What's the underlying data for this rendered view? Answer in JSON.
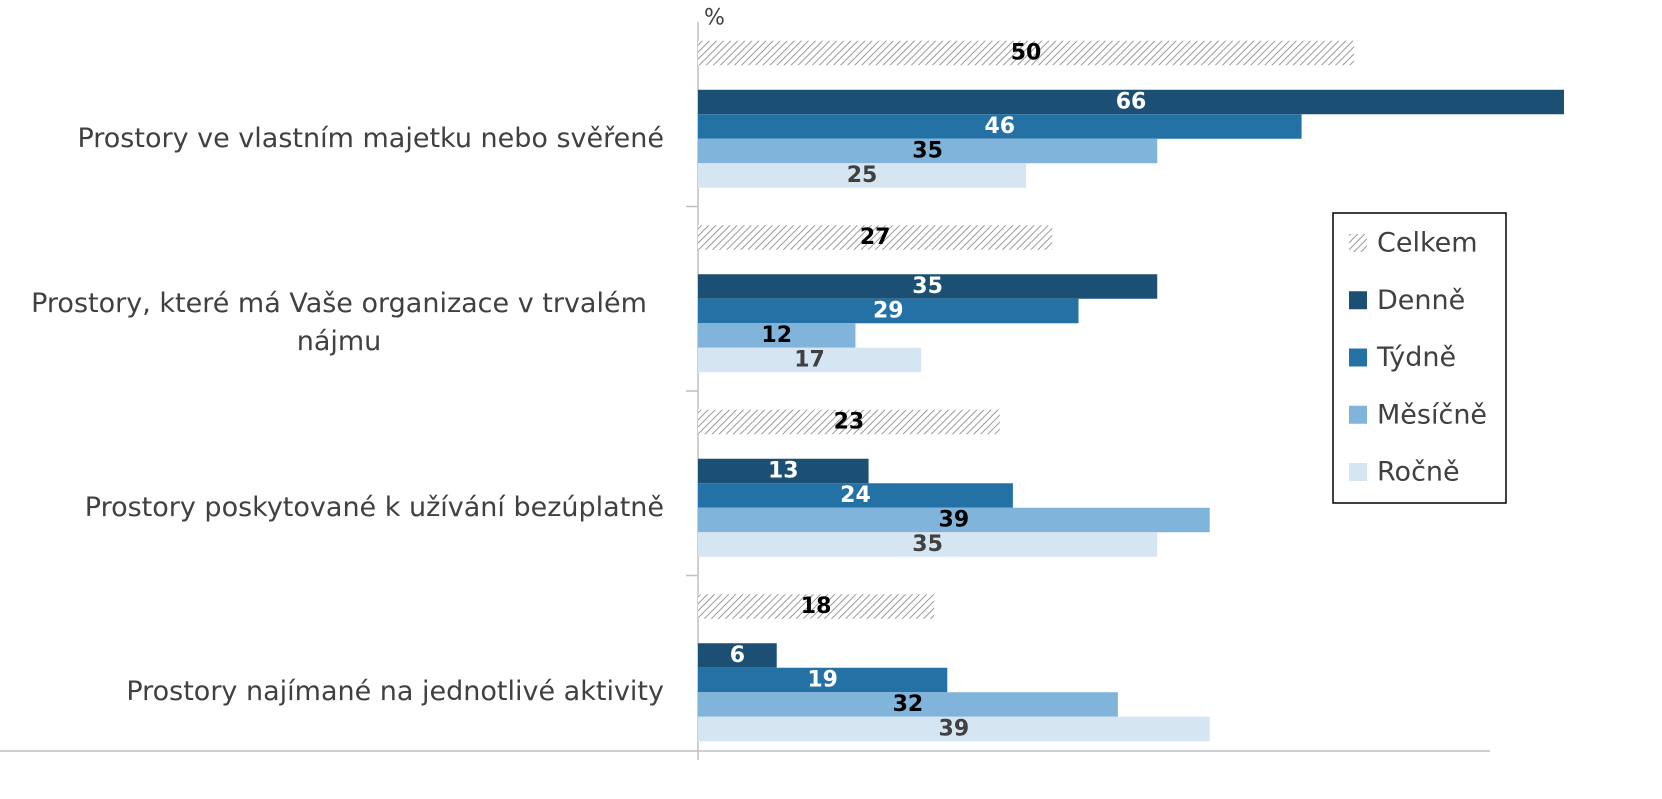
{
  "chart_data": {
    "type": "hbar",
    "unit": "%",
    "categories": [
      "Prostory ve vlastním majetku nebo svěřené",
      "Prostory, které má Vaše organizace v trvalém nájmu",
      "Prostory poskytované k užívání bezúplatně",
      "Prostory najímané na jednotlivé aktivity"
    ],
    "series": [
      {
        "name": "Celkem",
        "color": "#9a9a9a",
        "pattern": "hatch",
        "label_color": "#000000",
        "values": [
          50,
          27,
          23,
          18
        ]
      },
      {
        "name": "Denně",
        "color": "#1c4f74",
        "label_color": "#ffffff",
        "values": [
          66,
          35,
          13,
          6
        ]
      },
      {
        "name": "Týdně",
        "color": "#2471a6",
        "label_color": "#ffffff",
        "values": [
          46,
          29,
          24,
          19
        ]
      },
      {
        "name": "Měsíčně",
        "color": "#80b4da",
        "label_color": "#000000",
        "values": [
          35,
          12,
          39,
          32
        ]
      },
      {
        "name": "Ročně",
        "color": "#d5e5f2",
        "label_color": "#404040",
        "values": [
          25,
          17,
          35,
          39
        ]
      }
    ],
    "xlim": [
      0,
      66
    ],
    "legend": "right"
  }
}
